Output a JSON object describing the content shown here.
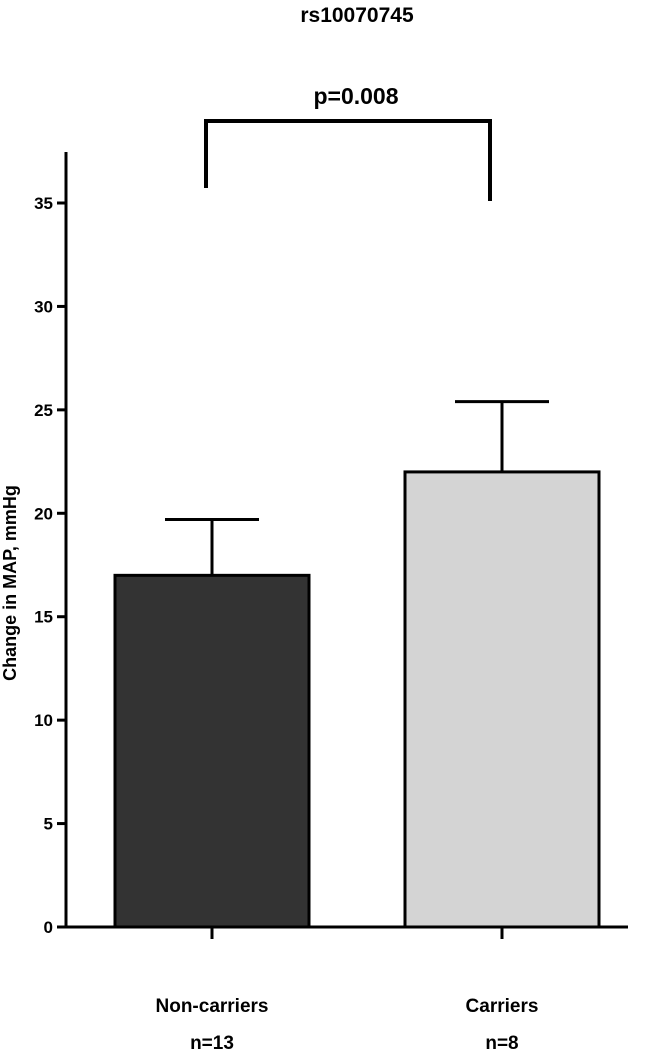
{
  "chart_data": {
    "type": "bar",
    "title": "rs10070745",
    "xlabel": "",
    "ylabel": "Change in MAP, mmHg",
    "ylim": [
      0,
      37
    ],
    "yticks": [
      0,
      5,
      10,
      15,
      20,
      25,
      30,
      35
    ],
    "categories": [
      "Non-carriers",
      "Carriers"
    ],
    "n_labels": [
      "n=13",
      "n=8"
    ],
    "values": [
      17.0,
      22.0
    ],
    "error_upper": [
      19.7,
      25.4
    ],
    "bar_colors": [
      "#333333",
      "#d4d4d4"
    ],
    "significance": {
      "label": "p=0.008",
      "groups": [
        "Non-carriers",
        "Carriers"
      ]
    },
    "grid": false,
    "legend": "none"
  }
}
